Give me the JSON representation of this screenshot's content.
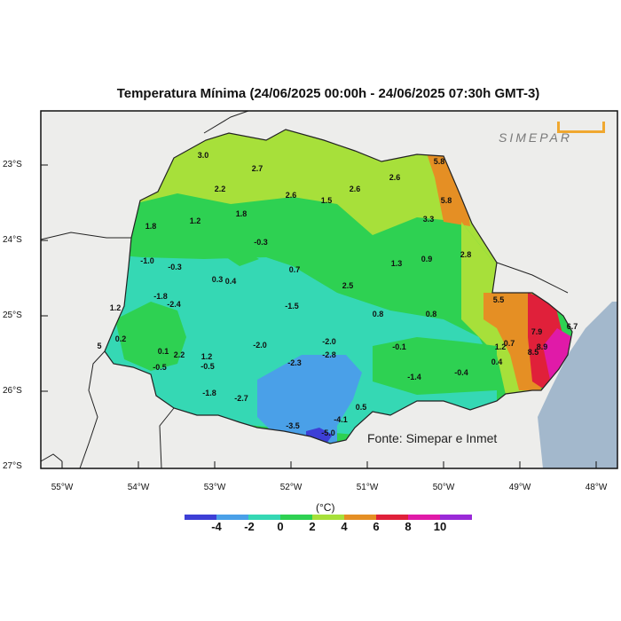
{
  "title": "Temperatura Mínima (24/06/2025 00:00h - 24/06/2025 07:30h GMT-3)",
  "source": "Fonte: Simepar e Inmet",
  "logo_text": "SIMEPAR",
  "lat_labels": [
    "23°S",
    "24°S",
    "25°S",
    "26°S",
    "27°S"
  ],
  "lon_labels": [
    "55°W",
    "54°W",
    "53°W",
    "52°W",
    "51°W",
    "50°W",
    "49°W",
    "48°W"
  ],
  "colorbar": {
    "unit": "(°C)",
    "tick_labels": [
      "-4",
      "-2",
      "0",
      "2",
      "4",
      "6",
      "8",
      "10"
    ],
    "colors": [
      "#3d3fd6",
      "#4aa0e8",
      "#35d8b4",
      "#2ed152",
      "#a7e03a",
      "#e58f24",
      "#e0203a",
      "#e01aa8",
      "#9a2ad8"
    ]
  },
  "colors": {
    "ocean": "#a3b8cc",
    "land_outside": "#ededeb",
    "region_cold": "#4aa0e8",
    "region_cool": "#35d8b4",
    "region_mild": "#2ed152",
    "region_warm": "#a7e03a",
    "region_hot": "#e58f24",
    "region_red": "#e0203a",
    "region_magenta": "#e01aa8"
  },
  "station_values": [
    "3.0",
    "2.7",
    "2.2",
    "2.6",
    "2.6",
    "5.8",
    "1.8",
    "1.2",
    "1.8",
    "1.5",
    "2.6",
    "3.3",
    "5.8",
    "-0.3",
    "2.8",
    "-1.0",
    "-0.3",
    "0.7",
    "1.3",
    "0.9",
    "0.3",
    "0.4",
    "2.5",
    "-1.8",
    "1.2",
    "-2.4",
    "-1.5",
    "0.8",
    "0.8",
    "5.5",
    "0.2",
    "0.1",
    "2.2",
    "1.2",
    "-2.0",
    "-2.0",
    "-0.1",
    "1.2",
    "0.7",
    "7.9",
    "-0.5",
    "-0.5",
    "-2.3",
    "-2.8",
    "0.4",
    "8.5",
    "8.9",
    "6.7",
    "-1.4",
    "-0.4",
    "-1.8",
    "-2.7",
    "0.5",
    "-3.5",
    "-4.1",
    "-5.0",
    "5"
  ]
}
